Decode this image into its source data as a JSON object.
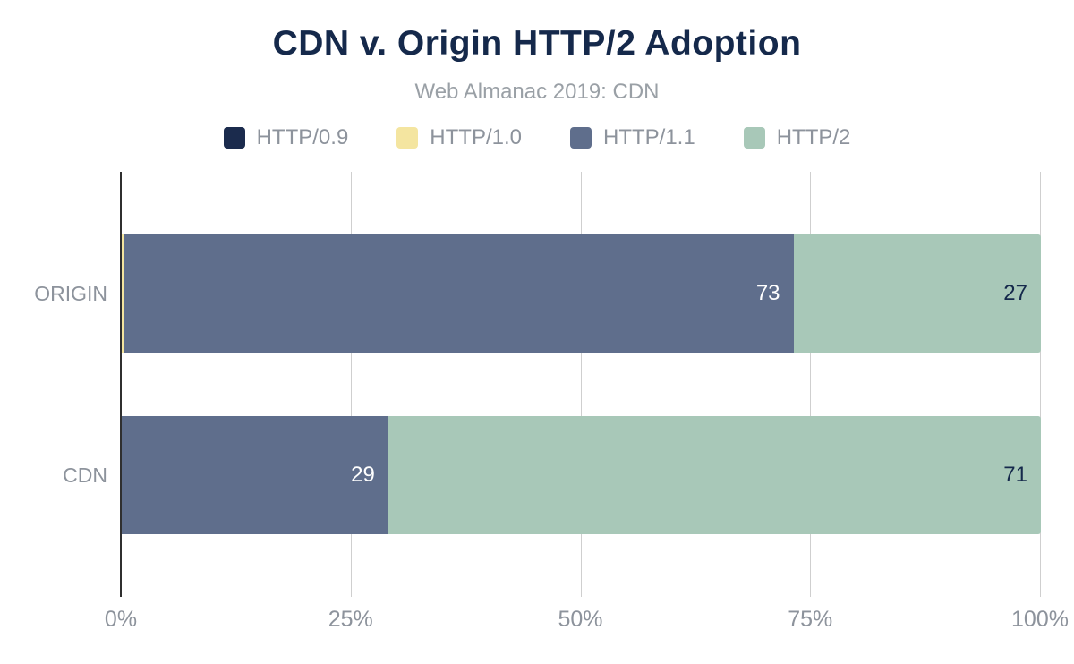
{
  "chart_data": {
    "type": "bar",
    "orientation": "horizontal",
    "stacked": true,
    "title": "CDN v. Origin HTTP/2 Adoption",
    "subtitle": "Web Almanac 2019: CDN",
    "categories": [
      "ORIGIN",
      "CDN"
    ],
    "series": [
      {
        "name": "HTTP/0.9",
        "color": "#1b2b4d",
        "label_color": "#ffffff",
        "values": [
          0,
          0
        ]
      },
      {
        "name": "HTTP/1.0",
        "color": "#f4e5a0",
        "label_color": "#15294b",
        "values": [
          0.3,
          0
        ]
      },
      {
        "name": "HTTP/1.1",
        "color": "#5f6e8c",
        "label_color": "#ffffff",
        "values": [
          73,
          29
        ]
      },
      {
        "name": "HTTP/2",
        "color": "#a8c8b8",
        "label_color": "#15294b",
        "values": [
          27,
          71
        ]
      }
    ],
    "visible_bar_labels": {
      "ORIGIN": [
        "73",
        "27"
      ],
      "CDN": [
        "29",
        "71"
      ]
    },
    "x_ticks": [
      "0%",
      "25%",
      "50%",
      "75%",
      "100%"
    ],
    "xlim": [
      0,
      100
    ],
    "grid": true,
    "legend_position": "top",
    "colors": {
      "title": "#15294b",
      "muted_text": "#8d939c",
      "gridline": "#cfcfcf",
      "zero_axis": "#2f2f2f",
      "background": "#ffffff"
    }
  }
}
